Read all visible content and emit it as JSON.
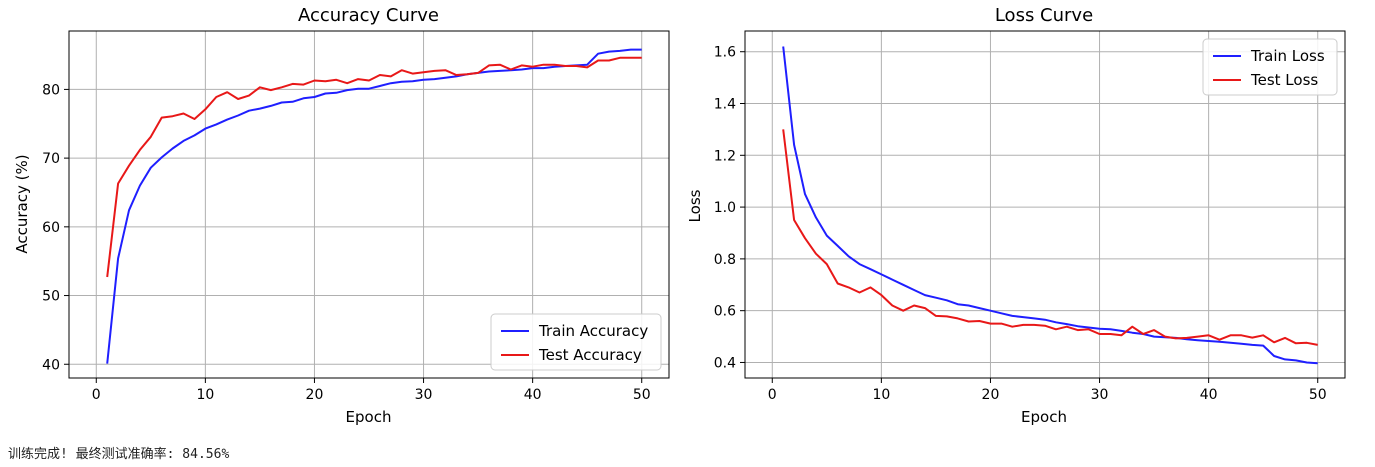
{
  "status_text": "训练完成! 最终测试准确率: 84.56%",
  "chart_data": [
    {
      "type": "line",
      "title": "Accuracy Curve",
      "xlabel": "Epoch",
      "ylabel": "Accuracy (%)",
      "xlim": [
        -2.5,
        52.5
      ],
      "ylim": [
        38,
        88.5
      ],
      "xticks": [
        0,
        10,
        20,
        30,
        40,
        50
      ],
      "yticks": [
        40,
        50,
        60,
        70,
        80
      ],
      "grid": true,
      "legend_position": "lower-right",
      "x": [
        1,
        2,
        3,
        4,
        5,
        6,
        7,
        8,
        9,
        10,
        11,
        12,
        13,
        14,
        15,
        16,
        17,
        18,
        19,
        20,
        21,
        22,
        23,
        24,
        25,
        26,
        27,
        28,
        29,
        30,
        31,
        32,
        33,
        34,
        35,
        36,
        37,
        38,
        39,
        40,
        41,
        42,
        43,
        44,
        45,
        46,
        47,
        48,
        49,
        50
      ],
      "series": [
        {
          "name": "Train Accuracy",
          "color": "#1f1fff",
          "values": [
            40.1,
            55.4,
            62.4,
            66.0,
            68.6,
            70.1,
            71.4,
            72.5,
            73.3,
            74.3,
            74.9,
            75.6,
            76.2,
            76.9,
            77.2,
            77.6,
            78.1,
            78.2,
            78.7,
            78.9,
            79.4,
            79.5,
            79.9,
            80.1,
            80.1,
            80.5,
            80.9,
            81.1,
            81.2,
            81.4,
            81.5,
            81.7,
            81.9,
            82.2,
            82.4,
            82.6,
            82.7,
            82.8,
            82.9,
            83.1,
            83.1,
            83.3,
            83.4,
            83.5,
            83.6,
            85.2,
            85.5,
            85.6,
            85.8,
            85.8
          ]
        },
        {
          "name": "Test Accuracy",
          "color": "#e81818",
          "values": [
            52.7,
            66.3,
            68.9,
            71.2,
            73.1,
            75.9,
            76.1,
            76.5,
            75.7,
            77.1,
            78.9,
            79.6,
            78.6,
            79.1,
            80.3,
            79.9,
            80.3,
            80.8,
            80.7,
            81.3,
            81.2,
            81.4,
            80.9,
            81.5,
            81.3,
            82.1,
            81.9,
            82.8,
            82.3,
            82.5,
            82.7,
            82.8,
            82.1,
            82.2,
            82.4,
            83.5,
            83.6,
            82.9,
            83.5,
            83.3,
            83.6,
            83.6,
            83.4,
            83.4,
            83.2,
            84.2,
            84.2,
            84.6,
            84.6,
            84.6
          ]
        }
      ]
    },
    {
      "type": "line",
      "title": "Loss Curve",
      "xlabel": "Epoch",
      "ylabel": "Loss",
      "xlim": [
        -2.5,
        52.5
      ],
      "ylim": [
        0.34,
        1.68
      ],
      "xticks": [
        0,
        10,
        20,
        30,
        40,
        50
      ],
      "yticks": [
        0.4,
        0.6,
        0.8,
        1.0,
        1.2,
        1.4,
        1.6
      ],
      "ytick_labels": [
        "0.4",
        "0.6",
        "0.8",
        "1.0",
        "1.2",
        "1.4",
        "1.6"
      ],
      "grid": true,
      "legend_position": "upper-right",
      "x": [
        1,
        2,
        3,
        4,
        5,
        6,
        7,
        8,
        9,
        10,
        11,
        12,
        13,
        14,
        15,
        16,
        17,
        18,
        19,
        20,
        21,
        22,
        23,
        24,
        25,
        26,
        27,
        28,
        29,
        30,
        31,
        32,
        33,
        34,
        35,
        36,
        37,
        38,
        39,
        40,
        41,
        42,
        43,
        44,
        45,
        46,
        47,
        48,
        49,
        50
      ],
      "series": [
        {
          "name": "Train Loss",
          "color": "#1f1fff",
          "values": [
            1.62,
            1.24,
            1.05,
            0.96,
            0.89,
            0.85,
            0.81,
            0.78,
            0.76,
            0.74,
            0.72,
            0.7,
            0.68,
            0.66,
            0.65,
            0.64,
            0.625,
            0.62,
            0.61,
            0.6,
            0.59,
            0.58,
            0.575,
            0.57,
            0.565,
            0.555,
            0.548,
            0.54,
            0.535,
            0.53,
            0.528,
            0.522,
            0.515,
            0.51,
            0.5,
            0.497,
            0.495,
            0.49,
            0.486,
            0.483,
            0.48,
            0.476,
            0.472,
            0.468,
            0.465,
            0.425,
            0.412,
            0.408,
            0.4,
            0.397
          ]
        },
        {
          "name": "Test Loss",
          "color": "#e81818",
          "values": [
            1.3,
            0.95,
            0.88,
            0.82,
            0.78,
            0.705,
            0.69,
            0.67,
            0.69,
            0.66,
            0.62,
            0.6,
            0.62,
            0.61,
            0.58,
            0.578,
            0.57,
            0.558,
            0.56,
            0.55,
            0.55,
            0.538,
            0.545,
            0.545,
            0.542,
            0.528,
            0.538,
            0.525,
            0.528,
            0.51,
            0.51,
            0.505,
            0.538,
            0.51,
            0.525,
            0.5,
            0.493,
            0.495,
            0.5,
            0.505,
            0.488,
            0.505,
            0.505,
            0.496,
            0.505,
            0.478,
            0.495,
            0.474,
            0.476,
            0.468
          ]
        }
      ]
    }
  ]
}
